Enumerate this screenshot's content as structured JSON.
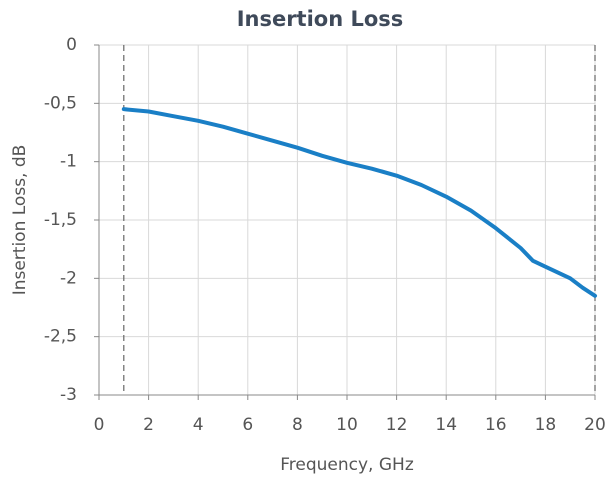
{
  "chart_data": {
    "type": "line",
    "title": "Insertion Loss",
    "xlabel": "Frequency, GHz",
    "ylabel": "Insertion Loss, dB",
    "x": [
      1,
      2,
      3,
      4,
      5,
      6,
      7,
      8,
      9,
      10,
      11,
      12,
      13,
      14,
      15,
      16,
      17,
      17.5,
      18,
      19,
      19.5,
      20
    ],
    "series": [
      {
        "name": "Insertion Loss",
        "color": "#1a7fc6",
        "values": [
          -0.55,
          -0.57,
          -0.61,
          -0.65,
          -0.7,
          -0.76,
          -0.82,
          -0.88,
          -0.95,
          -1.01,
          -1.06,
          -1.12,
          -1.2,
          -1.3,
          -1.42,
          -1.57,
          -1.74,
          -1.85,
          -1.9,
          -2.0,
          -2.08,
          -2.15
        ]
      }
    ],
    "xlim": [
      0,
      20
    ],
    "xticks": [
      0,
      2,
      4,
      6,
      8,
      10,
      12,
      14,
      16,
      18,
      20
    ],
    "ylim": [
      -3,
      0
    ],
    "yticks": [
      0,
      {
        "value": -0.5,
        "label": "-0,5"
      },
      -1,
      {
        "value": -1.5,
        "label": "-1,5"
      },
      -2,
      {
        "value": -2.5,
        "label": "-2,5"
      },
      -3
    ],
    "reference_lines_x": [
      1,
      20
    ],
    "grid": true
  }
}
